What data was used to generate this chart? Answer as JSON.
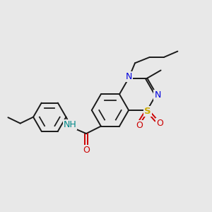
{
  "background_color": "#e8e8e8",
  "bond_color": "#1a1a1a",
  "n_color": "#0000dd",
  "s_color": "#ccaa00",
  "o_color": "#cc0000",
  "nh_color": "#008888",
  "figsize": [
    3.0,
    3.0
  ],
  "dpi": 100,
  "xlim": [
    0,
    10
  ],
  "ylim": [
    0,
    10
  ]
}
